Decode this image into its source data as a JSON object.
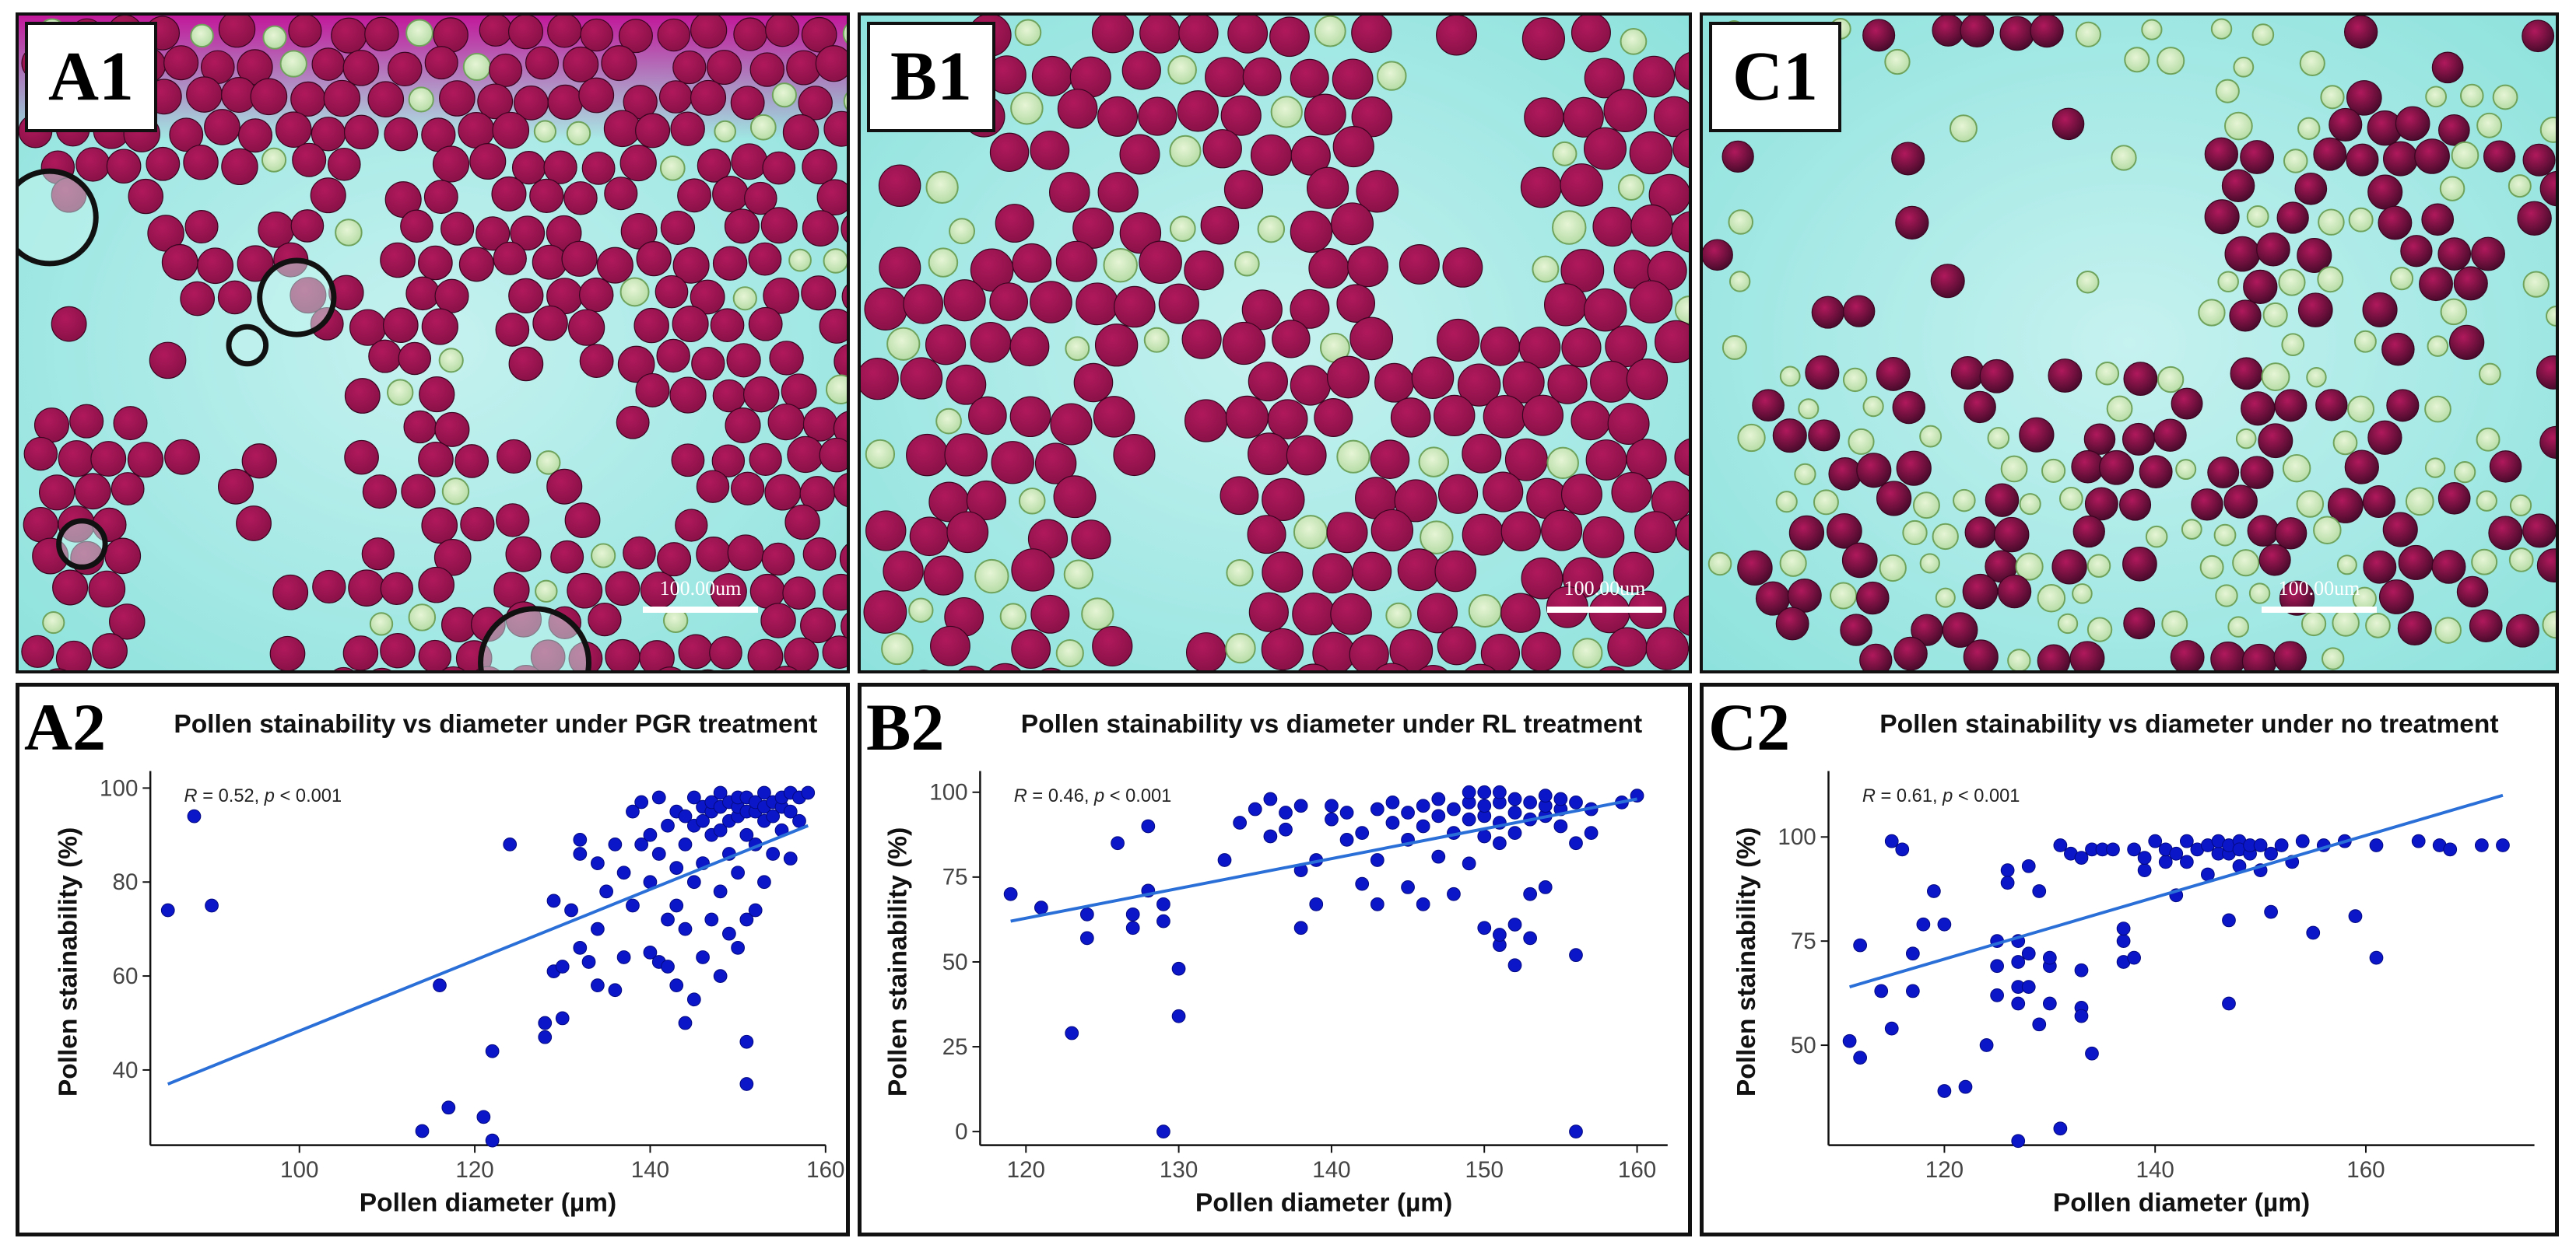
{
  "panels": {
    "a1": {
      "label": "A1",
      "scale": "100.00um"
    },
    "b1": {
      "label": "B1",
      "scale": "100.00um"
    },
    "c1": {
      "label": "C1",
      "scale": "100.00um"
    },
    "a2": {
      "label": "A2"
    },
    "b2": {
      "label": "B2"
    },
    "c2": {
      "label": "C2"
    }
  },
  "colors": {
    "background_bright": "#c6f2f0",
    "background": "#8ee2dd",
    "stained": "#8a1148",
    "stained_alt": "#b0195c",
    "dark_stained": "#4b0b2c",
    "unstained": "#b6dca6",
    "magenta_band": "#c2189a",
    "point": "#0a16c8",
    "trend": "#2a6fd8"
  },
  "chart_data": [
    {
      "type": "scatter",
      "title": "Pollen stainability vs diameter under PGR treatment",
      "xlabel": "Pollen diameter (µm)",
      "ylabel": "Pollen stainability (%)",
      "xlim": [
        83,
        160
      ],
      "ylim": [
        24,
        102
      ],
      "xticks": [
        100,
        120,
        140,
        160
      ],
      "yticks": [
        40,
        60,
        80,
        100
      ],
      "annotation": {
        "r": "R = 0.52, ",
        "p": "p",
        "rest": " < 0.001"
      },
      "trendline": {
        "x": [
          85,
          158
        ],
        "y": [
          37,
          92
        ]
      },
      "points": [
        [
          85,
          74
        ],
        [
          88,
          94
        ],
        [
          90,
          75
        ],
        [
          114,
          27
        ],
        [
          116,
          58
        ],
        [
          117,
          32
        ],
        [
          121,
          30
        ],
        [
          122,
          44
        ],
        [
          122,
          25
        ],
        [
          124,
          88
        ],
        [
          128,
          47
        ],
        [
          128,
          50
        ],
        [
          129,
          76
        ],
        [
          129,
          61
        ],
        [
          130,
          51
        ],
        [
          130,
          62
        ],
        [
          131,
          74
        ],
        [
          132,
          89
        ],
        [
          132,
          86
        ],
        [
          132,
          66
        ],
        [
          133,
          63
        ],
        [
          134,
          70
        ],
        [
          134,
          58
        ],
        [
          134,
          84
        ],
        [
          135,
          78
        ],
        [
          136,
          57
        ],
        [
          136,
          88
        ],
        [
          137,
          64
        ],
        [
          137,
          82
        ],
        [
          138,
          75
        ],
        [
          138,
          95
        ],
        [
          139,
          97
        ],
        [
          139,
          88
        ],
        [
          140,
          65
        ],
        [
          140,
          90
        ],
        [
          140,
          80
        ],
        [
          141,
          98
        ],
        [
          141,
          63
        ],
        [
          141,
          86
        ],
        [
          142,
          72
        ],
        [
          142,
          62
        ],
        [
          142,
          92
        ],
        [
          143,
          58
        ],
        [
          143,
          75
        ],
        [
          143,
          83
        ],
        [
          143,
          95
        ],
        [
          144,
          50
        ],
        [
          144,
          70
        ],
        [
          144,
          88
        ],
        [
          144,
          94
        ],
        [
          145,
          55
        ],
        [
          145,
          80
        ],
        [
          145,
          92
        ],
        [
          145,
          98
        ],
        [
          146,
          64
        ],
        [
          146,
          84
        ],
        [
          146,
          93
        ],
        [
          146,
          96
        ],
        [
          147,
          72
        ],
        [
          147,
          90
        ],
        [
          147,
          95
        ],
        [
          147,
          97
        ],
        [
          148,
          60
        ],
        [
          148,
          78
        ],
        [
          148,
          91
        ],
        [
          148,
          96
        ],
        [
          148,
          99
        ],
        [
          149,
          69
        ],
        [
          149,
          86
        ],
        [
          149,
          93
        ],
        [
          149,
          97
        ],
        [
          150,
          66
        ],
        [
          150,
          82
        ],
        [
          150,
          94
        ],
        [
          150,
          96
        ],
        [
          150,
          98
        ],
        [
          151,
          37
        ],
        [
          151,
          46
        ],
        [
          151,
          72
        ],
        [
          151,
          90
        ],
        [
          151,
          95
        ],
        [
          151,
          98
        ],
        [
          152,
          74
        ],
        [
          152,
          88
        ],
        [
          152,
          95
        ],
        [
          152,
          97
        ],
        [
          153,
          80
        ],
        [
          153,
          93
        ],
        [
          153,
          96
        ],
        [
          153,
          99
        ],
        [
          154,
          86
        ],
        [
          154,
          94
        ],
        [
          154,
          97
        ],
        [
          155,
          91
        ],
        [
          155,
          96
        ],
        [
          155,
          98
        ],
        [
          156,
          95
        ],
        [
          156,
          99
        ],
        [
          157,
          93
        ],
        [
          157,
          98
        ],
        [
          158,
          99
        ],
        [
          156,
          85
        ]
      ]
    },
    {
      "type": "scatter",
      "title": "Pollen stainability vs diameter under RL treatment",
      "xlabel": "Pollen diameter (µm)",
      "ylabel": "Pollen stainability (%)",
      "xlim": [
        117,
        162
      ],
      "ylim": [
        -4,
        104
      ],
      "xticks": [
        120,
        130,
        140,
        150,
        160
      ],
      "yticks": [
        0,
        25,
        50,
        75,
        100
      ],
      "annotation": {
        "r": "R = 0.46, ",
        "p": "p",
        "rest": " < 0.001"
      },
      "trendline": {
        "x": [
          119,
          160
        ],
        "y": [
          62,
          98
        ]
      },
      "points": [
        [
          119,
          70
        ],
        [
          121,
          66
        ],
        [
          123,
          29
        ],
        [
          124,
          57
        ],
        [
          124,
          64
        ],
        [
          126,
          85
        ],
        [
          127,
          60
        ],
        [
          127,
          64
        ],
        [
          128,
          71
        ],
        [
          128,
          90
        ],
        [
          129,
          67
        ],
        [
          129,
          62
        ],
        [
          129,
          0
        ],
        [
          130,
          48
        ],
        [
          130,
          34
        ],
        [
          133,
          80
        ],
        [
          134,
          91
        ],
        [
          135,
          95
        ],
        [
          136,
          98
        ],
        [
          136,
          87
        ],
        [
          137,
          94
        ],
        [
          137,
          89
        ],
        [
          138,
          60
        ],
        [
          138,
          77
        ],
        [
          138,
          96
        ],
        [
          139,
          80
        ],
        [
          139,
          67
        ],
        [
          140,
          92
        ],
        [
          140,
          96
        ],
        [
          141,
          86
        ],
        [
          141,
          94
        ],
        [
          142,
          73
        ],
        [
          142,
          88
        ],
        [
          143,
          67
        ],
        [
          143,
          80
        ],
        [
          143,
          95
        ],
        [
          144,
          91
        ],
        [
          144,
          97
        ],
        [
          145,
          72
        ],
        [
          145,
          86
        ],
        [
          145,
          94
        ],
        [
          146,
          67
        ],
        [
          146,
          90
        ],
        [
          146,
          96
        ],
        [
          147,
          81
        ],
        [
          147,
          93
        ],
        [
          147,
          98
        ],
        [
          148,
          70
        ],
        [
          148,
          88
        ],
        [
          148,
          95
        ],
        [
          149,
          79
        ],
        [
          149,
          92
        ],
        [
          149,
          97
        ],
        [
          149,
          100
        ],
        [
          150,
          60
        ],
        [
          150,
          87
        ],
        [
          150,
          93
        ],
        [
          150,
          96
        ],
        [
          150,
          100
        ],
        [
          151,
          55
        ],
        [
          151,
          58
        ],
        [
          151,
          85
        ],
        [
          151,
          91
        ],
        [
          151,
          97
        ],
        [
          151,
          100
        ],
        [
          152,
          49
        ],
        [
          152,
          61
        ],
        [
          152,
          88
        ],
        [
          152,
          94
        ],
        [
          152,
          98
        ],
        [
          153,
          57
        ],
        [
          153,
          70
        ],
        [
          153,
          92
        ],
        [
          153,
          97
        ],
        [
          154,
          72
        ],
        [
          154,
          93
        ],
        [
          154,
          96
        ],
        [
          154,
          99
        ],
        [
          155,
          90
        ],
        [
          155,
          95
        ],
        [
          155,
          98
        ],
        [
          156,
          0
        ],
        [
          156,
          52
        ],
        [
          156,
          85
        ],
        [
          156,
          97
        ],
        [
          157,
          88
        ],
        [
          157,
          95
        ],
        [
          159,
          97
        ],
        [
          160,
          99
        ]
      ]
    },
    {
      "type": "scatter",
      "title": "Pollen stainability vs diameter under no treatment",
      "xlabel": "Pollen diameter (µm)",
      "ylabel": "Pollen stainability (%)",
      "xlim": [
        109,
        176
      ],
      "ylim": [
        26,
        114
      ],
      "xticks": [
        120,
        140,
        160
      ],
      "yticks": [
        50,
        75,
        100
      ],
      "annotation": {
        "r": "R = 0.61, ",
        "p": "p",
        "rest": " < 0.001"
      },
      "trendline": {
        "x": [
          111,
          173
        ],
        "y": [
          64,
          110
        ]
      },
      "points": [
        [
          111,
          51
        ],
        [
          112,
          47
        ],
        [
          112,
          74
        ],
        [
          114,
          63
        ],
        [
          115,
          54
        ],
        [
          115,
          99
        ],
        [
          116,
          97
        ],
        [
          117,
          63
        ],
        [
          117,
          72
        ],
        [
          118,
          79
        ],
        [
          119,
          87
        ],
        [
          120,
          39
        ],
        [
          120,
          79
        ],
        [
          122,
          40
        ],
        [
          124,
          50
        ],
        [
          125,
          62
        ],
        [
          125,
          69
        ],
        [
          125,
          75
        ],
        [
          126,
          92
        ],
        [
          126,
          89
        ],
        [
          127,
          70
        ],
        [
          127,
          64
        ],
        [
          127,
          60
        ],
        [
          127,
          75
        ],
        [
          127,
          27
        ],
        [
          128,
          93
        ],
        [
          128,
          72
        ],
        [
          128,
          64
        ],
        [
          129,
          87
        ],
        [
          129,
          55
        ],
        [
          130,
          60
        ],
        [
          130,
          69
        ],
        [
          130,
          71
        ],
        [
          131,
          30
        ],
        [
          131,
          98
        ],
        [
          132,
          96
        ],
        [
          133,
          59
        ],
        [
          133,
          57
        ],
        [
          133,
          68
        ],
        [
          133,
          95
        ],
        [
          134,
          48
        ],
        [
          134,
          97
        ],
        [
          135,
          97
        ],
        [
          136,
          97
        ],
        [
          137,
          70
        ],
        [
          137,
          75
        ],
        [
          137,
          78
        ],
        [
          138,
          97
        ],
        [
          138,
          71
        ],
        [
          139,
          92
        ],
        [
          139,
          95
        ],
        [
          140,
          99
        ],
        [
          141,
          94
        ],
        [
          141,
          97
        ],
        [
          142,
          86
        ],
        [
          142,
          96
        ],
        [
          143,
          99
        ],
        [
          143,
          94
        ],
        [
          144,
          97
        ],
        [
          145,
          91
        ],
        [
          145,
          98
        ],
        [
          146,
          96
        ],
        [
          146,
          99
        ],
        [
          147,
          80
        ],
        [
          147,
          96
        ],
        [
          147,
          98
        ],
        [
          147,
          60
        ],
        [
          148,
          99
        ],
        [
          148,
          93
        ],
        [
          148,
          97
        ],
        [
          149,
          96
        ],
        [
          149,
          98
        ],
        [
          150,
          98
        ],
        [
          150,
          92
        ],
        [
          151,
          96
        ],
        [
          151,
          82
        ],
        [
          152,
          98
        ],
        [
          153,
          94
        ],
        [
          154,
          99
        ],
        [
          155,
          77
        ],
        [
          156,
          98
        ],
        [
          158,
          99
        ],
        [
          159,
          81
        ],
        [
          161,
          98
        ],
        [
          161,
          71
        ],
        [
          165,
          99
        ],
        [
          167,
          98
        ],
        [
          168,
          97
        ],
        [
          171,
          98
        ],
        [
          173,
          98
        ]
      ]
    }
  ]
}
